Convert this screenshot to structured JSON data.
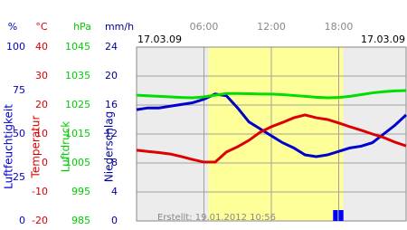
{
  "chart_data": {
    "type": "line",
    "date_left": "17.03.09",
    "date_right": "17.03.09",
    "footer": "Erstellt: 19.01.2012 10:56",
    "xlim": [
      0,
      24
    ],
    "xticks": [
      {
        "value": 6,
        "label": "06:00"
      },
      {
        "value": 12,
        "label": "12:00"
      },
      {
        "value": 18,
        "label": "18:00"
      }
    ],
    "daylight": [
      6.4,
      18.4
    ],
    "grid": true,
    "axes": [
      {
        "unit": "%",
        "title": "Luftfeuchtigkeit",
        "color": "#0000cc",
        "lim": [
          0,
          100
        ],
        "ticks": [
          0,
          25,
          50,
          75,
          100
        ]
      },
      {
        "unit": "°C",
        "title": "Temperatur",
        "color": "#dd0000",
        "lim": [
          -20,
          40
        ],
        "ticks": [
          -20,
          -10,
          0,
          10,
          20,
          30,
          40
        ]
      },
      {
        "unit": "hPa",
        "title": "Luftdruck",
        "color": "#00cc00",
        "lim": [
          985,
          1045
        ],
        "ticks": [
          985,
          995,
          1005,
          1015,
          1025,
          1035,
          1045
        ]
      },
      {
        "unit": "mm/h",
        "title": "Niederschlag",
        "color": "#000099",
        "lim": [
          0,
          24
        ],
        "ticks": [
          0,
          4,
          8,
          12,
          16,
          20,
          24
        ]
      }
    ],
    "x": [
      0,
      1,
      2,
      3,
      4,
      5,
      6,
      7,
      8,
      9,
      10,
      11,
      12,
      13,
      14,
      15,
      16,
      17,
      18,
      19,
      20,
      21,
      22,
      23,
      24
    ],
    "series": [
      {
        "color": "#0000cc",
        "axis": 0,
        "values": [
          64,
          65,
          65,
          66,
          67,
          68,
          70,
          73,
          72,
          65,
          57,
          53,
          49,
          45,
          42,
          38,
          37,
          38,
          40,
          42,
          43,
          45,
          50,
          55,
          61
        ]
      },
      {
        "color": "#dd0000",
        "axis": 1,
        "values": [
          4.4,
          4,
          3.6,
          3.1,
          2.2,
          1.2,
          0.3,
          0.3,
          3.8,
          5.6,
          7.8,
          10.6,
          12.5,
          14,
          15.6,
          16.6,
          15.6,
          15,
          13.8,
          12.5,
          11.3,
          10,
          8.8,
          7.2,
          5.9
        ]
      },
      {
        "color": "#00dd00",
        "axis": 2,
        "values": [
          1028.4,
          1028.2,
          1028,
          1027.8,
          1027.6,
          1027.5,
          1027.8,
          1028.4,
          1029,
          1029,
          1028.9,
          1028.8,
          1028.8,
          1028.6,
          1028.3,
          1028,
          1027.7,
          1027.5,
          1027.6,
          1028,
          1028.6,
          1029.2,
          1029.6,
          1029.9,
          1030
        ]
      }
    ],
    "precipitation": {
      "type": "bar",
      "x": [
        17.5,
        18
      ],
      "values": [
        1.5,
        1.5
      ],
      "color": "#0000ff",
      "axis": 3,
      "width": 0.5
    }
  }
}
